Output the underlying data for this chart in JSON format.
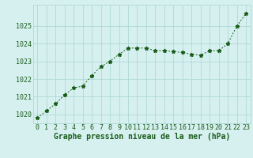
{
  "hours": [
    0,
    1,
    2,
    3,
    4,
    5,
    6,
    7,
    8,
    9,
    10,
    11,
    12,
    13,
    14,
    15,
    16,
    17,
    18,
    19,
    20,
    21,
    22,
    23
  ],
  "pressure": [
    1019.8,
    1020.2,
    1020.6,
    1021.1,
    1021.5,
    1021.6,
    1022.2,
    1022.7,
    1023.0,
    1023.4,
    1023.75,
    1023.75,
    1023.75,
    1023.6,
    1023.6,
    1023.55,
    1023.5,
    1023.4,
    1023.35,
    1023.6,
    1023.6,
    1024.0,
    1025.0,
    1025.7
  ],
  "line_color": "#1a5c1a",
  "marker": "*",
  "marker_size": 3.5,
  "bg_color": "#d6f0f0",
  "grid_color": "#b0d8d8",
  "xlabel": "Graphe pression niveau de la mer (hPa)",
  "xlabel_color": "#1a5c1a",
  "xlabel_fontsize": 7.0,
  "tick_color": "#1a5c1a",
  "tick_fontsize": 6.0,
  "ylim": [
    1019.5,
    1026.2
  ],
  "yticks": [
    1020,
    1021,
    1022,
    1023,
    1024,
    1025
  ],
  "line_width": 0.7
}
